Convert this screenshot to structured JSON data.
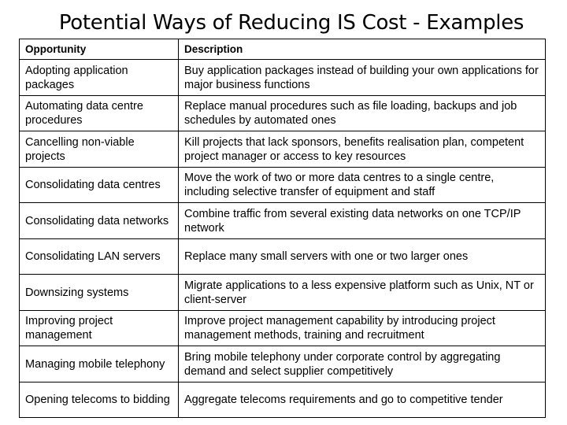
{
  "title": "Potential Ways of Reducing IS Cost - Examples",
  "table": {
    "headers": [
      "Opportunity",
      "Description"
    ],
    "rows": [
      [
        "Adopting application packages",
        "Buy application packages instead of building your own applications for major business functions"
      ],
      [
        "Automating data centre procedures",
        "Replace manual procedures such as file loading, backups and job schedules by automated ones"
      ],
      [
        "Cancelling non-viable projects",
        "Kill projects that lack sponsors, benefits realisation plan, competent project manager or access to key resources"
      ],
      [
        "Consolidating data centres",
        "Move the work of two or more data centres to a single centre, including selective transfer of equipment and staff"
      ],
      [
        "Consolidating data networks",
        "Combine traffic from several existing data networks on one TCP/IP network"
      ],
      [
        "Consolidating LAN servers",
        "Replace many small servers with one or two larger ones"
      ],
      [
        "Downsizing systems",
        "Migrate applications to a less expensive platform such as Unix, NT or client-server"
      ],
      [
        "Improving project management",
        "Improve project management capability by introducing project management methods, training and recruitment"
      ],
      [
        "Managing mobile telephony",
        "Bring mobile telephony under corporate control by aggregating demand and select supplier competitively"
      ],
      [
        "Opening telecoms to bidding",
        "Aggregate telecoms requirements and go to competitive tender"
      ]
    ]
  }
}
